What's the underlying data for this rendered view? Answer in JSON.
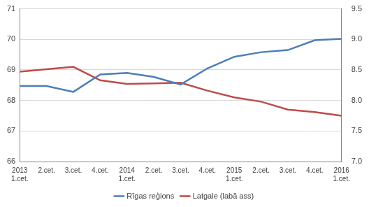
{
  "chart_data": {
    "type": "line",
    "categories": [
      "2013 1.cet.",
      "2.cet.",
      "3.cet.",
      "4.cet.",
      "2014 1.cet.",
      "2.cet.",
      "3.cet.",
      "4.cet.",
      "2015 1.cet.",
      "2.cet.",
      "3.cet.",
      "4.cet.",
      "2016 1.cet."
    ],
    "series": [
      {
        "name": "Rīgas reģions",
        "color": "#4a7ebb",
        "line_style": "solid",
        "values": [
          68.47,
          68.47,
          68.28,
          68.85,
          68.9,
          68.77,
          68.52,
          69.05,
          69.43,
          69.58,
          69.65,
          69.97,
          70.02
        ]
      },
      {
        "name": "Latgale (labā ass)",
        "color": "#be4b48",
        "line_style": "solid",
        "axis": "y2",
        "values": [
          8.47,
          8.51,
          8.55,
          8.33,
          8.27,
          8.28,
          8.29,
          8.16,
          8.05,
          7.98,
          7.85,
          7.81,
          7.75
        ]
      }
    ],
    "ylim": [
      66,
      71
    ],
    "yticks": [
      66,
      67,
      68,
      69,
      70,
      71
    ],
    "y2lim": [
      7,
      9.5
    ],
    "y2ticks": [
      {
        "value": 7,
        "label": "7.0"
      },
      7.5,
      {
        "value": 8,
        "label": "8.0"
      },
      8.5,
      {
        "value": 9,
        "label": "9.0"
      },
      9.5
    ],
    "grid": true,
    "legend": "bottom"
  }
}
